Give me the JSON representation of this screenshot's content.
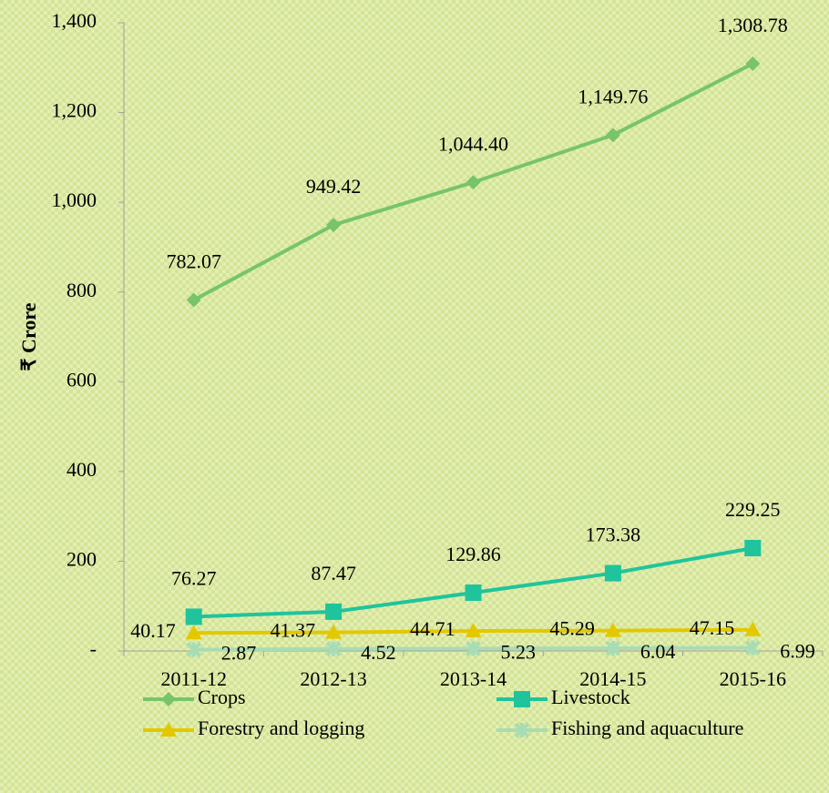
{
  "chart_data": {
    "type": "line",
    "y_label": "₹ Crore",
    "categories": [
      "2011-12",
      "2012-13",
      "2013-14",
      "2014-15",
      "2015-16"
    ],
    "series": [
      {
        "name": "Crops",
        "color": "#77c46a",
        "marker": "diamond",
        "label_pos": "above",
        "values": [
          782.07,
          949.42,
          1044.4,
          1149.76,
          1308.78
        ],
        "value_labels": [
          "782.07",
          "949.42",
          "1,044.40",
          "1,149.76",
          "1,308.78"
        ]
      },
      {
        "name": "Livestock",
        "color": "#1fc49c",
        "marker": "square",
        "label_pos": "above",
        "values": [
          76.27,
          87.47,
          129.86,
          173.38,
          229.25
        ]
      },
      {
        "name": "Forestry and logging",
        "color": "#e3c800",
        "marker": "triangle",
        "label_pos": "left",
        "values": [
          40.17,
          41.37,
          44.71,
          45.29,
          47.15
        ]
      },
      {
        "name": "Fishing and aquaculture",
        "color": "#a8dcb4",
        "marker": "cross",
        "label_pos": "right",
        "values": [
          2.87,
          4.52,
          5.23,
          6.04,
          6.99
        ]
      }
    ],
    "ylim": [
      0,
      1400
    ],
    "yticks": [
      {
        "value": 0,
        "label": "-"
      },
      200,
      400,
      600,
      800,
      {
        "value": 1000,
        "label": "1,000"
      },
      {
        "value": 1200,
        "label": "1,200"
      },
      {
        "value": 1400,
        "label": "1,400"
      }
    ],
    "grid": false
  }
}
